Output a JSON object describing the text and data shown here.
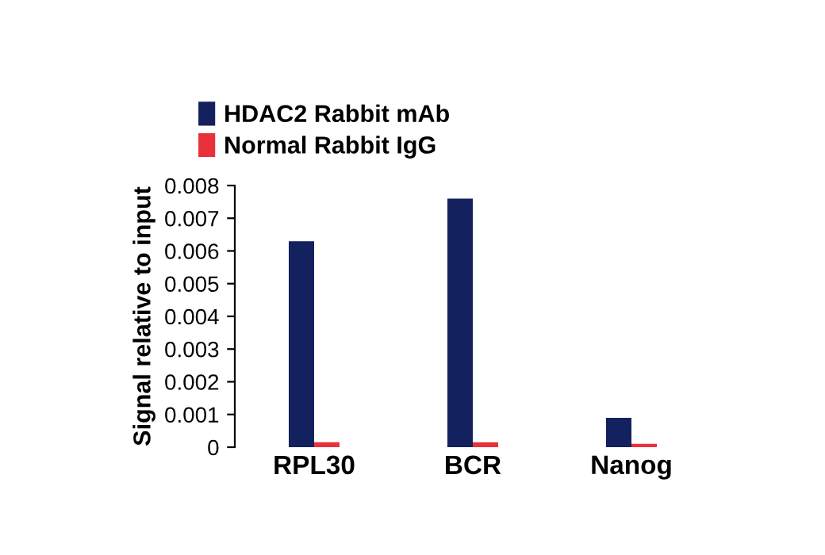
{
  "chart_data": {
    "type": "bar",
    "ylabel": "Signal relative to input",
    "categories": [
      "RPL30",
      "BCR",
      "Nanog"
    ],
    "series": [
      {
        "name": "HDAC2 Rabbit mAb",
        "color": "#14215f",
        "values": [
          0.0063,
          0.0076,
          0.0009
        ]
      },
      {
        "name": "Normal Rabbit IgG",
        "color": "#e8313a",
        "values": [
          0.00015,
          0.00015,
          0.0001
        ]
      }
    ],
    "ylim": [
      0,
      0.008
    ],
    "yticks": [
      "0",
      0.001,
      0.002,
      0.003,
      0.004,
      0.005,
      0.006,
      0.007,
      0.008
    ],
    "grid": false,
    "legend": "top left"
  }
}
